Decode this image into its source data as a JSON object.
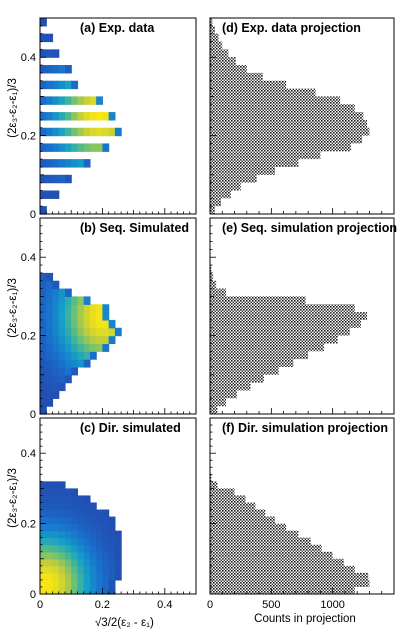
{
  "chart_data": [
    {
      "id": "a",
      "type": "heatmap",
      "title": "(a) Exp. data",
      "ylabel": "(2ε₃-ε₂-ε₁)/3",
      "xlim": [
        0,
        0.5
      ],
      "ylim": [
        0,
        0.5
      ],
      "yticks": [
        "0",
        "0.2",
        "0.4"
      ],
      "bin_width": 0.02,
      "hotspot": {
        "x": 0.19,
        "y": 0.25
      },
      "fill_boundary": [
        {
          "y": 0.01,
          "xmax": 0.02
        },
        {
          "y": 0.05,
          "xmax": 0.06
        },
        {
          "y": 0.09,
          "xmax": 0.1
        },
        {
          "y": 0.13,
          "xmax": 0.16
        },
        {
          "y": 0.17,
          "xmax": 0.22
        },
        {
          "y": 0.21,
          "xmax": 0.26
        },
        {
          "y": 0.25,
          "xmax": 0.24
        },
        {
          "y": 0.29,
          "xmax": 0.2
        },
        {
          "y": 0.33,
          "xmax": 0.12
        },
        {
          "y": 0.37,
          "xmax": 0.1
        },
        {
          "y": 0.41,
          "xmax": 0.06
        },
        {
          "y": 0.45,
          "xmax": 0.04
        },
        {
          "y": 0.49,
          "xmax": 0.02
        }
      ]
    },
    {
      "id": "d",
      "type": "bar",
      "orientation": "horizontal",
      "title": "(d) Exp. data projection",
      "xlim": [
        0,
        1500
      ],
      "ylim": [
        0,
        0.5
      ],
      "bin_width": 0.02,
      "bins": [
        {
          "y": 0.01,
          "count": 40
        },
        {
          "y": 0.03,
          "count": 90
        },
        {
          "y": 0.05,
          "count": 170
        },
        {
          "y": 0.07,
          "count": 250
        },
        {
          "y": 0.09,
          "count": 380
        },
        {
          "y": 0.11,
          "count": 530
        },
        {
          "y": 0.13,
          "count": 720
        },
        {
          "y": 0.15,
          "count": 900
        },
        {
          "y": 0.17,
          "count": 1150
        },
        {
          "y": 0.19,
          "count": 1240
        },
        {
          "y": 0.21,
          "count": 1300
        },
        {
          "y": 0.23,
          "count": 1280
        },
        {
          "y": 0.25,
          "count": 1250
        },
        {
          "y": 0.27,
          "count": 1180
        },
        {
          "y": 0.29,
          "count": 1060
        },
        {
          "y": 0.31,
          "count": 860
        },
        {
          "y": 0.33,
          "count": 620
        },
        {
          "y": 0.35,
          "count": 430
        },
        {
          "y": 0.37,
          "count": 300
        },
        {
          "y": 0.39,
          "count": 210
        },
        {
          "y": 0.41,
          "count": 150
        },
        {
          "y": 0.43,
          "count": 100
        },
        {
          "y": 0.45,
          "count": 70
        },
        {
          "y": 0.47,
          "count": 40
        },
        {
          "y": 0.49,
          "count": 20
        }
      ]
    },
    {
      "id": "b",
      "type": "heatmap",
      "title": "(b) Seq. Simulated",
      "ylabel": "(2ε₃-ε₂-ε₁)/3",
      "xlim": [
        0,
        0.5
      ],
      "ylim": [
        0,
        0.5
      ],
      "yticks": [
        "0",
        "0.2",
        "0.4"
      ],
      "bin_width": 0.02,
      "hotspot": {
        "x": 0.2,
        "y": 0.25
      },
      "fill_boundary": [
        {
          "y": 0.01,
          "xmax": 0.02
        },
        {
          "y": 0.03,
          "xmax": 0.04
        },
        {
          "y": 0.05,
          "xmax": 0.06
        },
        {
          "y": 0.07,
          "xmax": 0.08
        },
        {
          "y": 0.09,
          "xmax": 0.1
        },
        {
          "y": 0.11,
          "xmax": 0.12
        },
        {
          "y": 0.13,
          "xmax": 0.16
        },
        {
          "y": 0.15,
          "xmax": 0.18
        },
        {
          "y": 0.17,
          "xmax": 0.22
        },
        {
          "y": 0.19,
          "xmax": 0.24
        },
        {
          "y": 0.21,
          "xmax": 0.26
        },
        {
          "y": 0.23,
          "xmax": 0.24
        },
        {
          "y": 0.25,
          "xmax": 0.22
        },
        {
          "y": 0.27,
          "xmax": 0.22
        },
        {
          "y": 0.29,
          "xmax": 0.16
        },
        {
          "y": 0.31,
          "xmax": 0.1
        },
        {
          "y": 0.33,
          "xmax": 0.06
        },
        {
          "y": 0.35,
          "xmax": 0.04
        }
      ]
    },
    {
      "id": "e",
      "type": "bar",
      "orientation": "horizontal",
      "title": "(e) Seq. simulation projection",
      "xlim": [
        0,
        1500
      ],
      "ylim": [
        0,
        0.5
      ],
      "bin_width": 0.02,
      "bins": [
        {
          "y": 0.01,
          "count": 60
        },
        {
          "y": 0.03,
          "count": 130
        },
        {
          "y": 0.05,
          "count": 220
        },
        {
          "y": 0.07,
          "count": 330
        },
        {
          "y": 0.09,
          "count": 440
        },
        {
          "y": 0.11,
          "count": 560
        },
        {
          "y": 0.13,
          "count": 680
        },
        {
          "y": 0.15,
          "count": 800
        },
        {
          "y": 0.17,
          "count": 930
        },
        {
          "y": 0.19,
          "count": 1040
        },
        {
          "y": 0.21,
          "count": 1140
        },
        {
          "y": 0.23,
          "count": 1230
        },
        {
          "y": 0.25,
          "count": 1280
        },
        {
          "y": 0.27,
          "count": 1180
        },
        {
          "y": 0.29,
          "count": 780
        },
        {
          "y": 0.31,
          "count": 130
        },
        {
          "y": 0.33,
          "count": 50
        },
        {
          "y": 0.35,
          "count": 25
        },
        {
          "y": 0.37,
          "count": 10
        }
      ]
    },
    {
      "id": "c",
      "type": "heatmap",
      "title": "(c) Dir. simulated",
      "ylabel": "(2ε₃-ε₂-ε₁)/3",
      "xlabel": "√3/2(ε₂ - ε₁)",
      "xlim": [
        0,
        0.5
      ],
      "ylim": [
        0,
        0.5
      ],
      "xticks": [
        "0",
        "0.2",
        "0.4"
      ],
      "yticks": [
        "0",
        "0.2",
        "0.4"
      ],
      "bin_width": 0.02,
      "hotspot": {
        "x": 0.02,
        "y": 0.03
      },
      "fill_boundary": [
        {
          "y": 0.01,
          "xmax": 0.24
        },
        {
          "y": 0.03,
          "xmax": 0.24
        },
        {
          "y": 0.05,
          "xmax": 0.26
        },
        {
          "y": 0.07,
          "xmax": 0.26
        },
        {
          "y": 0.09,
          "xmax": 0.26
        },
        {
          "y": 0.11,
          "xmax": 0.26
        },
        {
          "y": 0.13,
          "xmax": 0.26
        },
        {
          "y": 0.15,
          "xmax": 0.26
        },
        {
          "y": 0.17,
          "xmax": 0.26
        },
        {
          "y": 0.19,
          "xmax": 0.24
        },
        {
          "y": 0.21,
          "xmax": 0.24
        },
        {
          "y": 0.23,
          "xmax": 0.22
        },
        {
          "y": 0.25,
          "xmax": 0.18
        },
        {
          "y": 0.27,
          "xmax": 0.16
        },
        {
          "y": 0.29,
          "xmax": 0.12
        },
        {
          "y": 0.31,
          "xmax": 0.08
        }
      ]
    },
    {
      "id": "f",
      "type": "bar",
      "orientation": "horizontal",
      "title": "(f) Dir. simulation projection",
      "xlabel": "Counts in projection",
      "xlim": [
        0,
        1500
      ],
      "ylim": [
        0,
        0.5
      ],
      "xticks": [
        "0",
        "500",
        "1000"
      ],
      "bin_width": 0.02,
      "bins": [
        {
          "y": 0.01,
          "count": 1180
        },
        {
          "y": 0.03,
          "count": 1300
        },
        {
          "y": 0.05,
          "count": 1290
        },
        {
          "y": 0.07,
          "count": 1180
        },
        {
          "y": 0.09,
          "count": 1090
        },
        {
          "y": 0.11,
          "count": 1000
        },
        {
          "y": 0.13,
          "count": 910
        },
        {
          "y": 0.15,
          "count": 820
        },
        {
          "y": 0.17,
          "count": 720
        },
        {
          "y": 0.19,
          "count": 620
        },
        {
          "y": 0.21,
          "count": 530
        },
        {
          "y": 0.23,
          "count": 450
        },
        {
          "y": 0.25,
          "count": 370
        },
        {
          "y": 0.27,
          "count": 290
        },
        {
          "y": 0.29,
          "count": 200
        },
        {
          "y": 0.31,
          "count": 60
        },
        {
          "y": 0.33,
          "count": 10
        }
      ]
    }
  ]
}
